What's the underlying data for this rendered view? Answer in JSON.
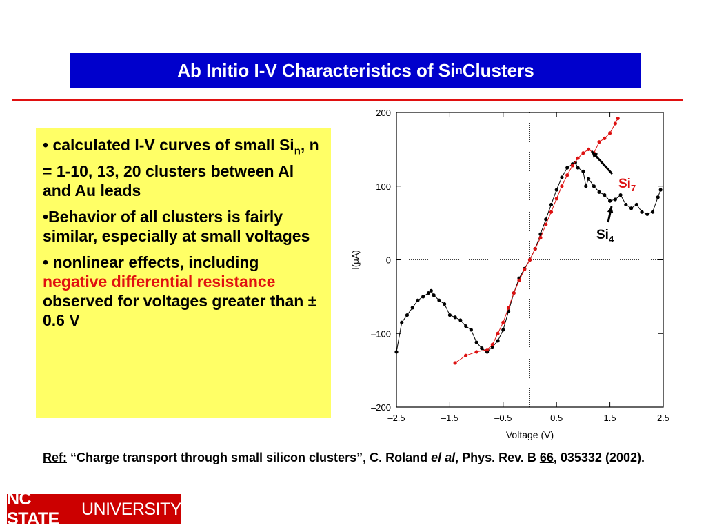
{
  "title": [
    {
      "text": "Ab Initio I-V Characteristics of Si"
    },
    {
      "text": "n",
      "style": "sub"
    },
    {
      "text": " Clusters"
    }
  ],
  "bullets": [
    [
      {
        "text": "• calculated I-V curves of small Si"
      },
      {
        "text": "n",
        "style": "sub"
      },
      {
        "text": ", n = 1-10, 13, 20 clusters between Al and Au leads"
      }
    ],
    [
      {
        "text": "•Behavior of all clusters is fairly similar, especially at small voltages"
      }
    ],
    [
      {
        "text": "• nonlinear effects, including "
      },
      {
        "text": "negative differential resistance",
        "style": "red"
      },
      {
        "text": " observed for voltages greater than  ± 0.6 V"
      }
    ]
  ],
  "reference": [
    {
      "text": "Ref:",
      "style": "underline"
    },
    {
      "text": " “Charge transport through small silicon clusters”, C. Roland "
    },
    {
      "text": "el al",
      "style": "italic"
    },
    {
      "text": ", Phys. Rev. B "
    },
    {
      "text": "66",
      "style": "underline"
    },
    {
      "text": ", 035332 (2002)."
    }
  ],
  "logo": [
    {
      "text": "NC STATE",
      "style": "bold"
    },
    {
      "text": " UNIVERSITY"
    }
  ],
  "chart_data": {
    "type": "line",
    "x_label": "Voltage (V)",
    "y_label": "I(μA)",
    "xlim": [
      -2.5,
      2.5
    ],
    "xticks": [
      {
        "value": -2.5,
        "label": "–2.5"
      },
      {
        "value": -1.5,
        "label": "–1.5"
      },
      {
        "value": -0.5,
        "label": "–0.5"
      },
      0.5,
      1.5,
      2.5
    ],
    "ylim": [
      -200,
      200
    ],
    "yticks": [
      {
        "value": -200,
        "label": "–200"
      },
      {
        "value": -100,
        "label": "–100"
      },
      0,
      100,
      200
    ],
    "series": [
      {
        "name": "Si4",
        "color": "#000000",
        "x": [
          -2.5,
          -2.4,
          -2.3,
          -2.2,
          -2.1,
          -2.0,
          -1.9,
          -1.85,
          -1.8,
          -1.7,
          -1.6,
          -1.5,
          -1.4,
          -1.3,
          -1.2,
          -1.1,
          -1.0,
          -0.9,
          -0.8,
          -0.7,
          -0.6,
          -0.5,
          -0.4,
          -0.3,
          -0.2,
          -0.1,
          0,
          0.1,
          0.2,
          0.3,
          0.4,
          0.5,
          0.6,
          0.7,
          0.8,
          0.85,
          0.9,
          1.0,
          1.05,
          1.1,
          1.2,
          1.3,
          1.4,
          1.5,
          1.6,
          1.7,
          1.8,
          1.9,
          2.0,
          2.1,
          2.2,
          2.3,
          2.4,
          2.45
        ],
        "values": [
          -125,
          -85,
          -75,
          -65,
          -55,
          -50,
          -45,
          -42,
          -48,
          -55,
          -60,
          -75,
          -78,
          -82,
          -90,
          -95,
          -112,
          -120,
          -125,
          -118,
          -110,
          -95,
          -70,
          -45,
          -25,
          -12,
          0,
          15,
          35,
          55,
          75,
          95,
          112,
          125,
          130,
          132,
          125,
          120,
          100,
          110,
          100,
          92,
          88,
          80,
          82,
          88,
          75,
          70,
          75,
          65,
          62,
          65,
          85,
          95
        ]
      },
      {
        "name": "Si7",
        "color": "#dd1111",
        "x": [
          -1.4,
          -1.2,
          -1.0,
          -0.8,
          -0.7,
          -0.6,
          -0.5,
          -0.4,
          -0.3,
          -0.2,
          -0.1,
          0,
          0.1,
          0.2,
          0.3,
          0.4,
          0.5,
          0.6,
          0.7,
          0.8,
          0.9,
          1.0,
          1.1,
          1.2,
          1.3,
          1.4,
          1.5,
          1.6,
          1.65
        ],
        "values": [
          -140,
          -130,
          -125,
          -122,
          -115,
          -100,
          -85,
          -65,
          -45,
          -28,
          -13,
          0,
          15,
          30,
          48,
          65,
          83,
          100,
          115,
          128,
          138,
          145,
          150,
          145,
          160,
          165,
          172,
          185,
          192
        ]
      }
    ],
    "annotations": [
      [
        {
          "text": "Si",
          "color": "#dd1111"
        },
        {
          "text": "7",
          "style": "sub",
          "color": "#dd1111"
        }
      ],
      [
        {
          "text": "Si"
        },
        {
          "text": "4",
          "style": "sub"
        }
      ]
    ]
  }
}
